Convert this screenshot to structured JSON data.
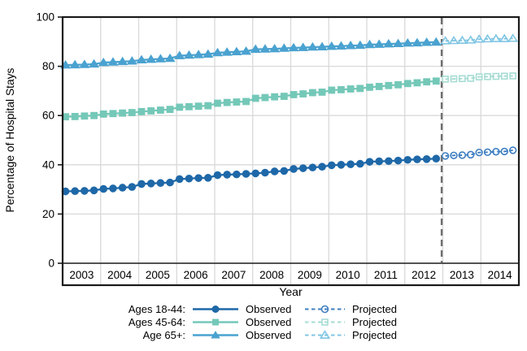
{
  "chart_data": {
    "type": "line",
    "title": "",
    "xlabel": "Year",
    "ylabel": "Percentage of Hospital Stays",
    "ylim": [
      0,
      100
    ],
    "y_ticks": [
      0,
      20,
      40,
      60,
      80,
      100
    ],
    "x_start_year": 2003,
    "x_end_year": 2015,
    "year_labels": [
      "2003",
      "2004",
      "2005",
      "2006",
      "2007",
      "2008",
      "2009",
      "2010",
      "2011",
      "2012",
      "2013",
      "2014"
    ],
    "points_per_year": 4,
    "cutoff_year": 2012.97,
    "grid_on": true,
    "grid_color": "#d9d9d9",
    "cutoff_color": "#6e6e6e",
    "frame_color": "#1a1a1a",
    "legend_position": "bottom",
    "series": [
      {
        "name": "Ages 18-44",
        "marker": "circle",
        "color": "#1e68a8",
        "projected_color": "#3e7fc1",
        "observed": [
          29.2,
          29.3,
          29.4,
          29.6,
          30.2,
          30.4,
          30.7,
          31.0,
          32.2,
          32.4,
          32.6,
          32.8,
          34.2,
          34.4,
          34.6,
          34.7,
          35.8,
          36.0,
          36.1,
          36.3,
          36.5,
          36.8,
          37.3,
          37.5,
          38.3,
          38.6,
          38.9,
          39.2,
          39.8,
          40.0,
          40.2,
          40.4,
          41.2,
          41.4,
          41.5,
          41.7,
          42.0,
          42.2,
          42.3,
          42.5
        ],
        "projected": [
          43.6,
          43.8,
          43.9,
          44.1,
          45.0,
          45.1,
          45.3,
          45.4,
          45.9
        ]
      },
      {
        "name": "Ages 45-64",
        "marker": "square",
        "color": "#74c8b8",
        "projected_color": "#a6dcd3",
        "observed": [
          59.5,
          59.6,
          59.8,
          60.0,
          60.6,
          60.8,
          61.0,
          61.2,
          61.6,
          61.9,
          62.2,
          62.5,
          63.4,
          63.6,
          63.8,
          64.0,
          65.0,
          65.3,
          65.5,
          65.7,
          67.0,
          67.3,
          67.6,
          67.8,
          68.5,
          68.8,
          69.3,
          69.5,
          70.3,
          70.5,
          70.8,
          71.0,
          71.5,
          71.8,
          72.2,
          72.5,
          73.0,
          73.3,
          73.7,
          74.0
        ],
        "projected": [
          74.8,
          74.9,
          75.0,
          75.1,
          75.7,
          75.8,
          75.9,
          76.0,
          76.1
        ]
      },
      {
        "name": "Age 65+",
        "marker": "triangle",
        "color": "#4aa2d0",
        "projected_color": "#7fc5e3",
        "observed": [
          80.5,
          80.6,
          80.7,
          80.9,
          81.5,
          81.7,
          81.9,
          82.1,
          82.6,
          82.8,
          83.0,
          83.2,
          84.3,
          84.5,
          84.7,
          84.9,
          85.5,
          85.7,
          85.9,
          86.1,
          86.9,
          87.0,
          87.1,
          87.3,
          87.5,
          87.6,
          87.8,
          87.9,
          88.1,
          88.2,
          88.4,
          88.5,
          88.8,
          88.9,
          89.1,
          89.2,
          89.4,
          89.5,
          89.7,
          89.8
        ],
        "projected": [
          90.3,
          90.4,
          90.5,
          90.6,
          91.0,
          91.1,
          91.2,
          91.2,
          91.3
        ]
      }
    ],
    "legend": {
      "rows": [
        {
          "label": "Ages 18-44:",
          "observed_label": "Observed",
          "projected_label": "Projected"
        },
        {
          "label": "Ages 45-64:",
          "observed_label": "Observed",
          "projected_label": "Projected"
        },
        {
          "label": "Age 65+:",
          "observed_label": "Observed",
          "projected_label": "Projected"
        }
      ]
    }
  }
}
